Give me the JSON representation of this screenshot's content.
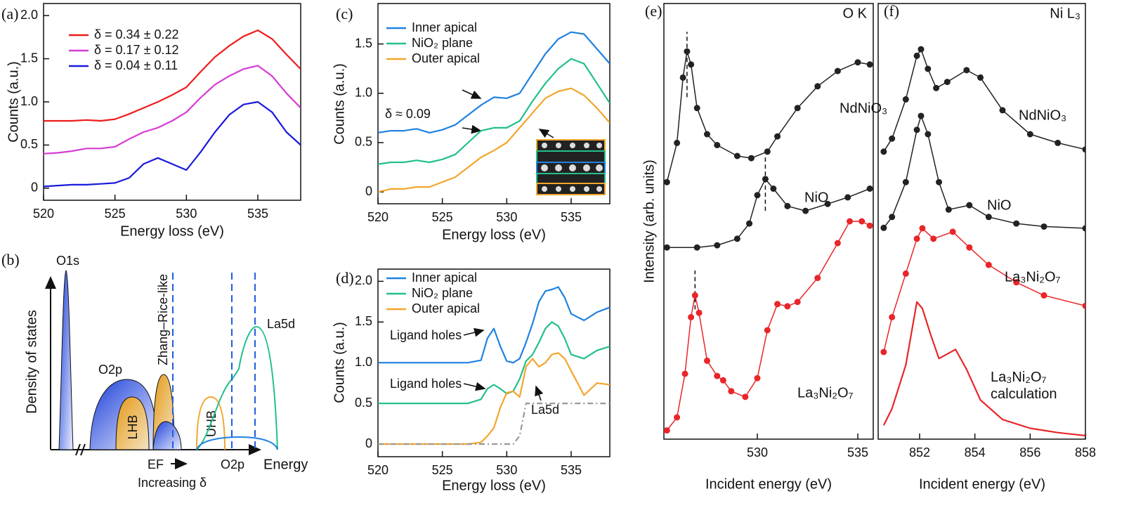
{
  "chart_data": [
    {
      "type": "line",
      "panel": "(a)",
      "x_label": "Energy loss (eV)",
      "y_label": "Counts (a.u.)",
      "x": [
        520,
        521,
        522,
        523,
        524,
        525,
        526,
        527,
        528,
        529,
        530,
        531,
        532,
        533,
        534,
        535,
        536,
        537,
        538
      ],
      "xlim": [
        520,
        538
      ],
      "xticks": [
        520,
        525,
        530,
        535
      ],
      "ylim": [
        -0.14,
        2.14
      ],
      "yticks": [
        0,
        0.5,
        {
          "value": 1,
          "label": "1.0"
        },
        1.5,
        {
          "value": 2,
          "label": "2.0"
        }
      ],
      "legend": "upper left",
      "series": [
        {
          "name": "δ = 0.34 ± 0.22",
          "color": "#ee1c1c",
          "values": [
            0.78,
            0.78,
            0.78,
            0.79,
            0.78,
            0.8,
            0.86,
            0.93,
            1.0,
            1.08,
            1.17,
            1.35,
            1.52,
            1.65,
            1.76,
            1.83,
            1.73,
            1.55,
            1.38
          ]
        },
        {
          "name": "δ = 0.17 ± 0.12",
          "color": "#d63cd6",
          "values": [
            0.4,
            0.41,
            0.43,
            0.46,
            0.46,
            0.48,
            0.57,
            0.65,
            0.7,
            0.78,
            0.88,
            1.05,
            1.2,
            1.3,
            1.38,
            1.42,
            1.3,
            1.1,
            0.93
          ]
        },
        {
          "name": "δ = 0.04 ± 0.11",
          "color": "#1a1adc",
          "values": [
            0.02,
            0.03,
            0.04,
            0.04,
            0.05,
            0.06,
            0.12,
            0.28,
            0.35,
            0.28,
            0.21,
            0.42,
            0.65,
            0.85,
            0.97,
            1.0,
            0.88,
            0.65,
            0.5
          ]
        }
      ]
    },
    {
      "type": "line",
      "panel": "(c)",
      "x_label": "Energy loss (eV)",
      "y_label": "Counts (a.u.)",
      "x": [
        520,
        521,
        522,
        523,
        524,
        525,
        526,
        527,
        528,
        529,
        530,
        531,
        532,
        533,
        534,
        535,
        536,
        537,
        538
      ],
      "xlim": [
        520,
        538
      ],
      "xticks": [
        520,
        525,
        530,
        535
      ],
      "ylim": [
        -0.12,
        1.91
      ],
      "yticks": [
        0,
        0.5,
        {
          "value": 1,
          "label": "1.0"
        },
        1.5
      ],
      "legend": "upper left",
      "annotations": [
        "δ ≈ 0.09"
      ],
      "series": [
        {
          "name": "Inner apical",
          "color": "#1f82e0",
          "values": [
            0.6,
            0.62,
            0.62,
            0.64,
            0.6,
            0.63,
            0.68,
            0.78,
            0.88,
            0.96,
            0.95,
            1.0,
            1.2,
            1.4,
            1.55,
            1.62,
            1.6,
            1.45,
            1.3
          ]
        },
        {
          "name": "NiO₂ plane",
          "color": "#22bf8c",
          "values": [
            0.28,
            0.3,
            0.3,
            0.32,
            0.3,
            0.33,
            0.38,
            0.5,
            0.62,
            0.65,
            0.65,
            0.72,
            0.92,
            1.1,
            1.25,
            1.35,
            1.3,
            1.1,
            0.9
          ]
        },
        {
          "name": "Outer apical",
          "color": "#f2a62c",
          "values": [
            0,
            0.03,
            0.03,
            0.05,
            0.05,
            0.1,
            0.15,
            0.25,
            0.35,
            0.42,
            0.5,
            0.65,
            0.8,
            0.95,
            1.02,
            1.05,
            0.98,
            0.85,
            0.7
          ]
        }
      ]
    },
    {
      "type": "line",
      "panel": "(d)",
      "x_label": "Energy loss (eV)",
      "y_label": "Counts (a.u.)",
      "x": [
        520,
        522,
        524,
        526,
        527,
        528,
        528.5,
        529,
        529.5,
        530,
        530.5,
        531,
        531.5,
        532,
        532.5,
        533,
        533.5,
        534,
        534.5,
        535,
        536,
        537,
        538
      ],
      "xlim": [
        520,
        538
      ],
      "xticks": [
        520,
        525,
        530,
        535
      ],
      "ylim": [
        -0.155,
        2.15
      ],
      "yticks": [
        0,
        0.5,
        {
          "value": 1,
          "label": "1.0"
        },
        1.5,
        {
          "value": 2,
          "label": "2.0"
        }
      ],
      "legend": "upper left",
      "annotations": [
        "Ligand holes",
        "Ligand holes",
        "La5d"
      ],
      "series": [
        {
          "name": "Inner apical",
          "color": "#1f82e0",
          "values": [
            1,
            1,
            1,
            1,
            1,
            1.03,
            1.3,
            1.42,
            1.2,
            1.02,
            1,
            1.05,
            1.25,
            1.48,
            1.75,
            1.88,
            1.9,
            1.93,
            1.8,
            1.6,
            1.52,
            1.62,
            1.68
          ]
        },
        {
          "name": "NiO₂ plane",
          "color": "#22bf8c",
          "values": [
            0.5,
            0.5,
            0.5,
            0.5,
            0.5,
            0.55,
            0.68,
            0.73,
            0.68,
            0.62,
            0.65,
            0.8,
            1.02,
            1.1,
            1.25,
            1.42,
            1.5,
            1.45,
            1.3,
            1.1,
            1.05,
            1.15,
            1.2
          ]
        },
        {
          "name": "Outer apical",
          "color": "#f2a62c",
          "values": [
            0,
            0,
            0,
            0,
            0,
            0.02,
            0.1,
            0.2,
            0.45,
            0.63,
            0.65,
            0.58,
            0.95,
            1.05,
            0.95,
            1.0,
            1.1,
            1.12,
            1.05,
            0.9,
            0.6,
            0.75,
            0.73
          ]
        },
        {
          "color": "#999999",
          "dash": true,
          "values": [
            0,
            0,
            0,
            0,
            0,
            0,
            0,
            0,
            0,
            0,
            0,
            0.1,
            0.5,
            0.5,
            0.5,
            0.5,
            0.5,
            0.5,
            0.5,
            0.5,
            0.5,
            0.5,
            0.5
          ]
        }
      ]
    },
    {
      "type": "line",
      "panel": "(e)",
      "corner_label": "O K",
      "x_label": "Incident energy (eV)",
      "y_label": "Intensity (arb. units)",
      "xlim": [
        525.35,
        535.77
      ],
      "xticks": [
        530,
        535
      ],
      "ylim": [
        0,
        10
      ],
      "peak_lines": [
        {
          "x": 526.5,
          "y": [
            7.85,
            9.35
          ]
        },
        {
          "x": 530.4,
          "y": [
            5.24,
            6.5
          ]
        },
        {
          "x": 526.9,
          "y": [
            2.98,
            3.87
          ]
        }
      ],
      "series": [
        {
          "name": "NdNiO₃",
          "color": "#222222",
          "markers": true,
          "x": [
            525.5,
            526,
            526.3,
            526.5,
            526.7,
            527,
            527.5,
            528,
            529,
            529.7,
            530.5,
            531,
            532,
            533,
            534,
            535,
            535.6
          ],
          "values": [
            5.9,
            6.8,
            8.3,
            8.9,
            8.6,
            7.6,
            7.0,
            6.75,
            6.5,
            6.45,
            6.6,
            6.95,
            7.6,
            8.1,
            8.45,
            8.65,
            8.6
          ]
        },
        {
          "name": "NiO",
          "color": "#222222",
          "markers": true,
          "x": [
            525.5,
            527,
            528,
            529,
            529.6,
            530,
            530.4,
            530.8,
            531.5,
            532.4,
            533.5,
            534.5,
            535.6
          ],
          "values": [
            4.4,
            4.4,
            4.45,
            4.6,
            4.95,
            5.6,
            5.97,
            5.75,
            5.35,
            5.24,
            5.4,
            5.55,
            5.75
          ]
        },
        {
          "name": "La₃Ni₂O₇",
          "color": "#e8262a",
          "markers": true,
          "x": [
            525.5,
            526,
            526.4,
            526.7,
            526.9,
            527.1,
            527.5,
            528,
            528.3,
            528.7,
            529.4,
            530,
            530.5,
            531,
            531.5,
            532,
            533,
            534,
            534.6,
            535.2,
            535.6
          ],
          "values": [
            0.2,
            0.5,
            1.5,
            2.8,
            3.3,
            2.9,
            1.8,
            1.45,
            1.35,
            1.1,
            0.97,
            1.4,
            2.5,
            3.1,
            3.05,
            3.15,
            3.7,
            4.5,
            5.0,
            5.0,
            4.9
          ]
        }
      ]
    },
    {
      "type": "line",
      "panel": "(f)",
      "corner_label": "Ni L₃",
      "x_label": "Incident energy (eV)",
      "xlim": [
        850.5,
        858
      ],
      "xticks": [
        852,
        854,
        856,
        858
      ],
      "ylim": [
        0,
        10
      ],
      "series": [
        {
          "name": "NdNiO₃",
          "color": "#222222",
          "markers": true,
          "x": [
            850.7,
            851,
            851.5,
            851.9,
            852.05,
            852.3,
            852.6,
            853,
            853.7,
            854.2,
            855,
            856,
            857,
            858
          ],
          "values": [
            6.6,
            6.9,
            7.8,
            8.8,
            8.95,
            8.5,
            8.06,
            8.2,
            8.47,
            8.3,
            7.55,
            7.0,
            6.8,
            6.65
          ]
        },
        {
          "name": "NiO",
          "color": "#222222",
          "markers": true,
          "x": [
            850.7,
            851,
            851.5,
            851.9,
            852.05,
            852.3,
            852.7,
            853.05,
            853.8,
            854.5,
            855.5,
            856.5,
            858
          ],
          "values": [
            4.85,
            5.1,
            5.9,
            7.1,
            7.42,
            7.0,
            5.9,
            5.27,
            5.37,
            5.1,
            4.95,
            4.88,
            4.84
          ]
        },
        {
          "name": "La₃Ni₂O₇",
          "color": "#e8262a",
          "markers": true,
          "x": [
            850.7,
            851,
            851.5,
            851.9,
            852.1,
            852.5,
            853.2,
            853.8,
            854.5,
            855.5,
            856.5,
            858
          ],
          "values": [
            2.0,
            2.8,
            3.8,
            4.6,
            4.84,
            4.6,
            4.76,
            4.4,
            4.0,
            3.6,
            3.3,
            3.06
          ]
        },
        {
          "name": "La₃Ni₂O₇ calculation",
          "color": "#e8262a",
          "x": [
            850.7,
            851,
            851.5,
            851.9,
            852.1,
            852.4,
            852.7,
            853.3,
            853.7,
            854.2,
            855,
            856,
            857,
            858
          ],
          "values": [
            0.32,
            0.7,
            1.7,
            3.15,
            3.0,
            2.4,
            1.85,
            2.06,
            1.6,
            0.9,
            0.45,
            0.25,
            0.15,
            0.08
          ]
        }
      ]
    }
  ],
  "diagram": {
    "panel": "(b)",
    "y_label": "Density of states",
    "x_label": "Energy",
    "labels": {
      "o1s": "O1s",
      "o2p_lower": "O2p",
      "lhb": "LHB",
      "zr": "Zhang–Rice-like",
      "uhb": "UHB",
      "o2p_upper": "O2p",
      "la5d": "La5d",
      "ef": "EF",
      "increasing": "Increasing δ"
    }
  }
}
